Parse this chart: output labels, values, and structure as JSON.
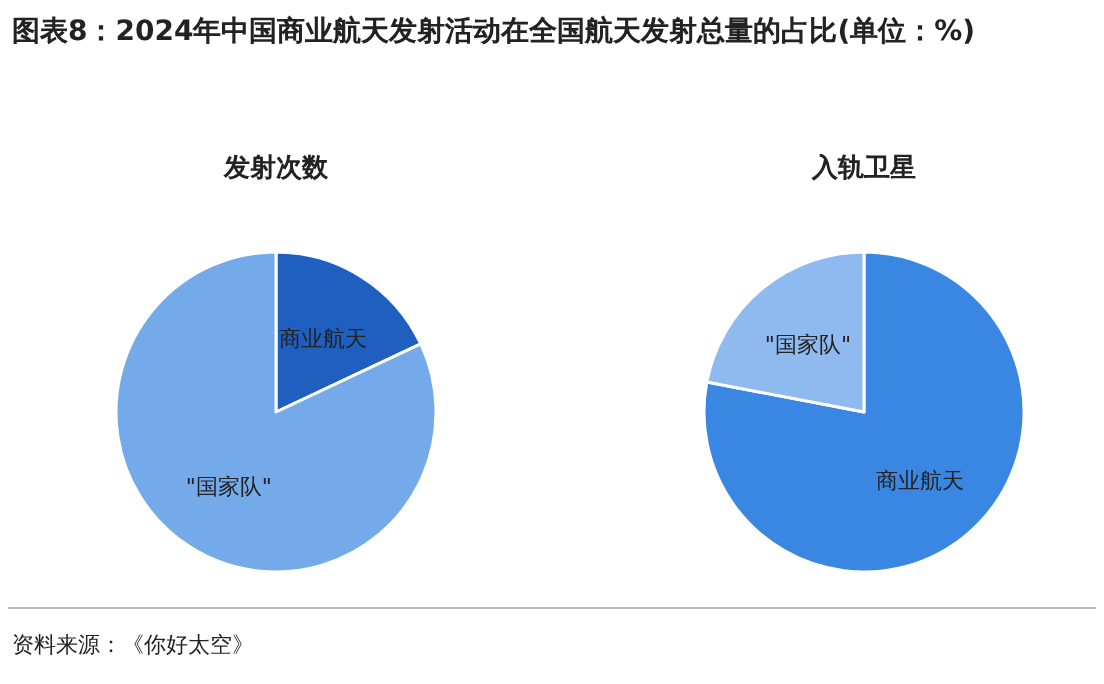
{
  "chart_data": [
    {
      "type": "other",
      "title": "图表8：2024年中国商业航天发射活动在全国航天发射总量的占比(单位：%)",
      "annotations": [
        "资料来源：《你好太空》"
      ]
    },
    {
      "type": "pie",
      "title": "发射次数",
      "categories": [
        "商业航天",
        "\"国家队\""
      ],
      "values": [
        18,
        82
      ],
      "colors": [
        "#1f5fbf",
        "#74a9ea"
      ]
    },
    {
      "type": "pie",
      "title": "入轨卫星",
      "categories": [
        "商业航天",
        "\"国家队\""
      ],
      "values": [
        78,
        22
      ],
      "colors": [
        "#3a87e3",
        "#8fbaf0"
      ]
    }
  ]
}
